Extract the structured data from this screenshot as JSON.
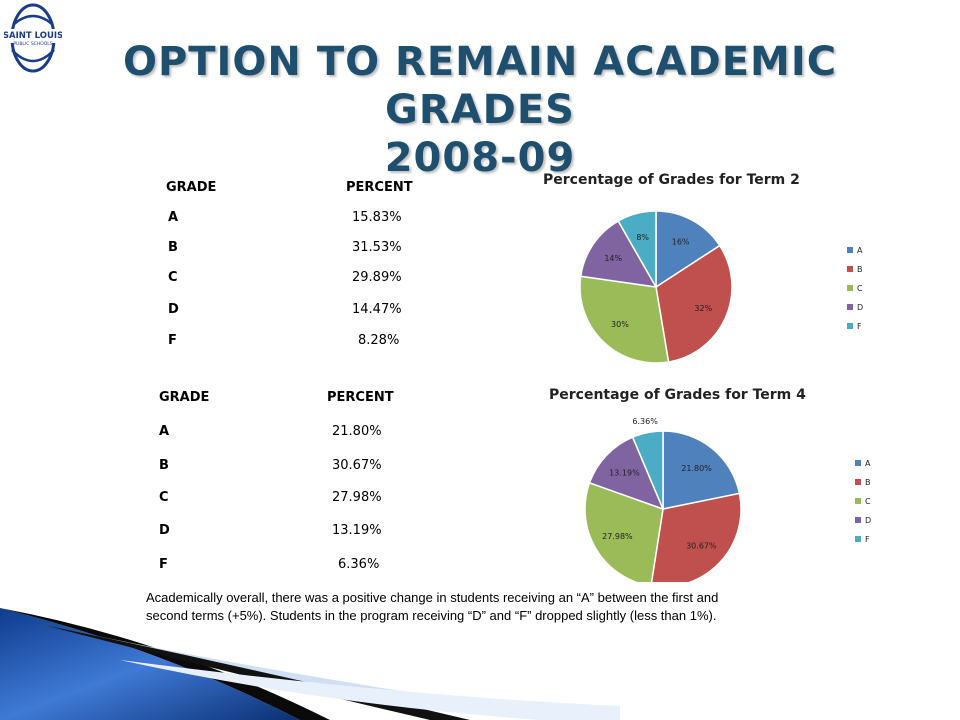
{
  "logo": {
    "line1": "SAINT LOUIS",
    "line2": "PUBLIC SCHOOLS"
  },
  "header": {
    "title_line1": "OPTION TO REMAIN ACADEMIC GRADES",
    "title_line2": "2008-09"
  },
  "table_term2": {
    "header_grade": "GRADE",
    "header_percent": "PERCENT",
    "rows": [
      {
        "grade": "A",
        "percent": "15.83%"
      },
      {
        "grade": "B",
        "percent": "31.53%"
      },
      {
        "grade": "C",
        "percent": "29.89%"
      },
      {
        "grade": "D",
        "percent": "14.47%"
      },
      {
        "grade": "F",
        "percent": "8.28%"
      }
    ]
  },
  "table_term4": {
    "header_grade": "GRADE",
    "header_percent": "PERCENT",
    "rows": [
      {
        "grade": "A",
        "percent": "21.80%"
      },
      {
        "grade": "B",
        "percent": "30.67%"
      },
      {
        "grade": "C",
        "percent": "27.98%"
      },
      {
        "grade": "D",
        "percent": "13.19%"
      },
      {
        "grade": "F",
        "percent": "6.36%"
      }
    ]
  },
  "chart_data": [
    {
      "type": "pie",
      "title": "Percentage of Grades for Term 2",
      "categories": [
        "A",
        "B",
        "C",
        "D",
        "F"
      ],
      "values": [
        15.83,
        31.53,
        29.89,
        14.47,
        8.28
      ],
      "data_labels": [
        "16%",
        "32%",
        "30%",
        "14%",
        "8%"
      ],
      "colors": [
        "#4f81bd",
        "#c0504d",
        "#9bbb59",
        "#8064a2",
        "#4bacc6"
      ],
      "legend": "right"
    },
    {
      "type": "pie",
      "title": "Percentage of Grades for Term 4",
      "categories": [
        "A",
        "B",
        "C",
        "D",
        "F"
      ],
      "values": [
        21.8,
        30.67,
        27.98,
        13.19,
        6.36
      ],
      "data_labels": [
        "21.80%",
        "30.67%",
        "27.98%",
        "13.19%",
        "6.36%"
      ],
      "colors": [
        "#4f81bd",
        "#c0504d",
        "#9bbb59",
        "#8064a2",
        "#4bacc6"
      ],
      "legend": "right"
    }
  ],
  "summary": {
    "line1": "Academically overall, there was a positive change in students receiving an “A” between the first and",
    "line2": "second terms (+5%).   Students in the program receiving “D” and “F” dropped slightly (less than 1%)."
  }
}
